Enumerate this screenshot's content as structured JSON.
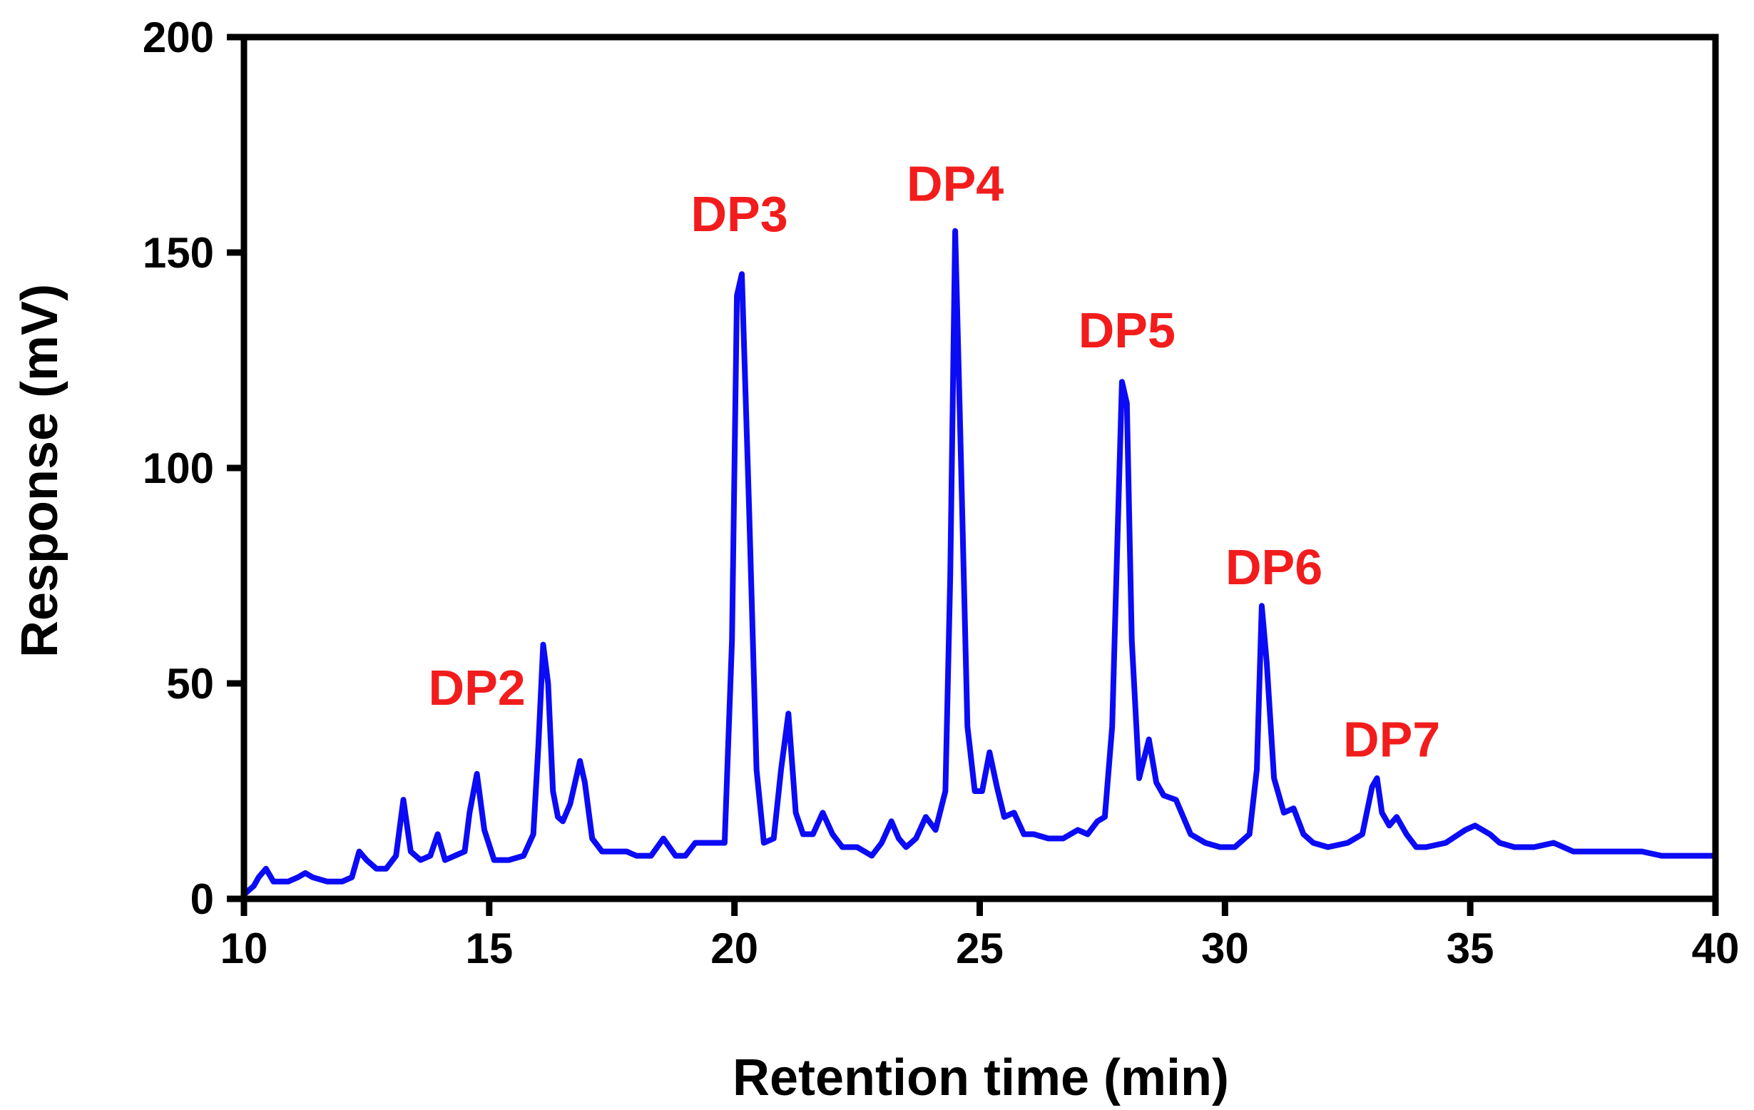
{
  "chart_data": {
    "type": "line",
    "title": "",
    "xlabel": "Retention time (min)",
    "ylabel": "Response (mV)",
    "xlim": [
      10,
      40
    ],
    "ylim": [
      0,
      200
    ],
    "xticks": [
      10,
      15,
      20,
      25,
      30,
      35,
      40
    ],
    "yticks": [
      0,
      50,
      100,
      150,
      200
    ],
    "grid": false,
    "colors": {
      "series": "#0b0bf5",
      "annotation": "#f21c1c",
      "axis": "#000000"
    },
    "series": [
      {
        "name": "Response",
        "x": [
          10.0,
          10.2,
          10.3,
          10.45,
          10.6,
          10.9,
          11.1,
          11.25,
          11.4,
          11.7,
          12.0,
          12.2,
          12.35,
          12.5,
          12.7,
          12.9,
          13.1,
          13.25,
          13.4,
          13.6,
          13.8,
          13.95,
          14.1,
          14.3,
          14.5,
          14.6,
          14.75,
          14.9,
          15.1,
          15.4,
          15.7,
          15.9,
          16.0,
          16.1,
          16.2,
          16.3,
          16.4,
          16.5,
          16.65,
          16.85,
          16.95,
          17.1,
          17.3,
          17.6,
          17.8,
          18.0,
          18.3,
          18.55,
          18.8,
          19.0,
          19.2,
          19.4,
          19.6,
          19.8,
          19.95,
          20.05,
          20.15,
          20.3,
          20.45,
          20.6,
          20.8,
          20.95,
          21.1,
          21.25,
          21.4,
          21.6,
          21.8,
          22.0,
          22.2,
          22.5,
          22.8,
          23.0,
          23.2,
          23.35,
          23.5,
          23.7,
          23.9,
          24.1,
          24.3,
          24.4,
          24.5,
          24.6,
          24.75,
          24.9,
          25.05,
          25.2,
          25.35,
          25.5,
          25.7,
          25.9,
          26.1,
          26.4,
          26.7,
          27.0,
          27.2,
          27.4,
          27.55,
          27.7,
          27.8,
          27.9,
          28.0,
          28.1,
          28.25,
          28.45,
          28.6,
          28.75,
          29.0,
          29.3,
          29.6,
          29.9,
          30.2,
          30.5,
          30.65,
          30.75,
          30.85,
          31.0,
          31.2,
          31.4,
          31.6,
          31.8,
          32.1,
          32.5,
          32.8,
          33.0,
          33.1,
          33.2,
          33.35,
          33.5,
          33.7,
          33.9,
          34.1,
          34.5,
          34.9,
          35.1,
          35.4,
          35.6,
          35.9,
          36.3,
          36.7,
          37.1,
          37.4,
          37.8,
          38.2,
          38.5,
          38.9,
          39.3,
          39.7,
          40.0
        ],
        "y": [
          1,
          3,
          5,
          7,
          4,
          4,
          5,
          6,
          5,
          4,
          4,
          5,
          11,
          9,
          7,
          7,
          10,
          23,
          11,
          9,
          10,
          15,
          9,
          10,
          11,
          20,
          29,
          16,
          9,
          9,
          10,
          15,
          35,
          59,
          50,
          25,
          19,
          18,
          22,
          32,
          27,
          14,
          11,
          11,
          11,
          10,
          10,
          14,
          10,
          10,
          13,
          13,
          13,
          13,
          60,
          140,
          145,
          90,
          30,
          13,
          14,
          30,
          43,
          20,
          15,
          15,
          20,
          15,
          12,
          12,
          10,
          13,
          18,
          14,
          12,
          14,
          19,
          16,
          25,
          75,
          155,
          110,
          40,
          25,
          25,
          34,
          26,
          19,
          20,
          15,
          15,
          14,
          14,
          16,
          15,
          18,
          19,
          40,
          80,
          120,
          115,
          60,
          28,
          37,
          27,
          24,
          23,
          15,
          13,
          12,
          12,
          15,
          30,
          68,
          55,
          28,
          20,
          21,
          15,
          13,
          12,
          13,
          15,
          26,
          28,
          20,
          17,
          19,
          15,
          12,
          12,
          13,
          16,
          17,
          15,
          13,
          12,
          12,
          13,
          11,
          11,
          11,
          11,
          11,
          10,
          10,
          10,
          10
        ]
      }
    ],
    "annotations": [
      {
        "text": "DP2",
        "x": 14.75,
        "y": 45
      },
      {
        "text": "DP3",
        "x": 20.1,
        "y": 155
      },
      {
        "text": "DP4",
        "x": 24.5,
        "y": 162
      },
      {
        "text": "DP5",
        "x": 28.0,
        "y": 128
      },
      {
        "text": "DP6",
        "x": 31.0,
        "y": 73
      },
      {
        "text": "DP7",
        "x": 33.4,
        "y": 33
      }
    ]
  }
}
